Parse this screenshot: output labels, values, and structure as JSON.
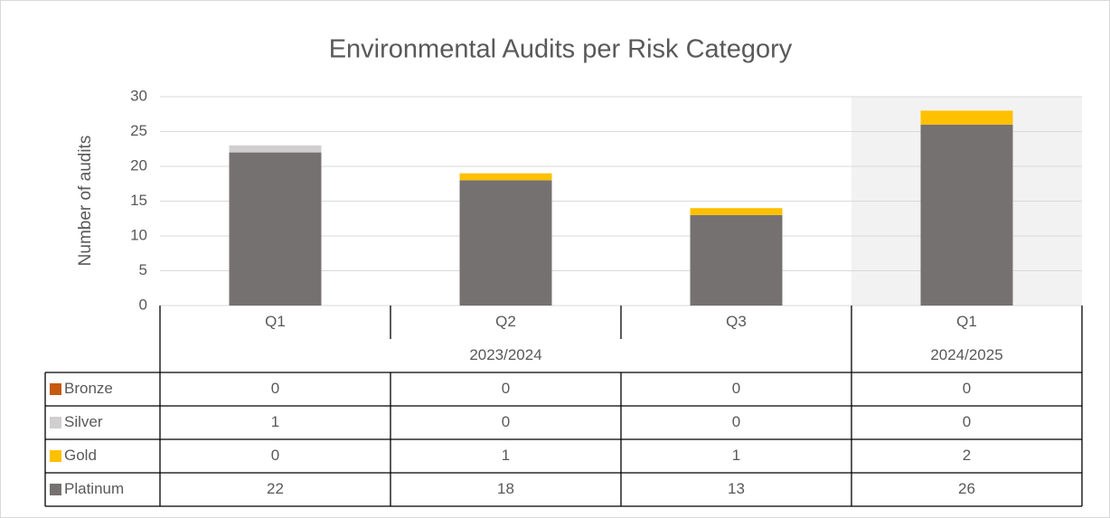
{
  "chart_data": {
    "type": "bar",
    "stacked": true,
    "title": "Environmental Audits per Risk Category",
    "y_label": "Number of audits",
    "category_groups": [
      {
        "name": "2023/2024",
        "categories": [
          "Q1",
          "Q2",
          "Q3"
        ]
      },
      {
        "name": "2024/2025",
        "categories": [
          "Q1"
        ],
        "shaded": true
      }
    ],
    "series": [
      {
        "name": "Bronze",
        "color": "#c55a11",
        "values": [
          0,
          0,
          0,
          0
        ]
      },
      {
        "name": "Silver",
        "color": "#d0cece",
        "values": [
          1,
          0,
          0,
          0
        ]
      },
      {
        "name": "Gold",
        "color": "#ffc000",
        "values": [
          0,
          1,
          1,
          2
        ]
      },
      {
        "name": "Platinum",
        "color": "#767171",
        "values": [
          22,
          18,
          13,
          26
        ]
      }
    ],
    "ylim": [
      0,
      30
    ],
    "yticks": [
      0,
      5,
      10,
      15,
      20,
      25,
      30
    ],
    "grid": true,
    "data_table": true
  }
}
